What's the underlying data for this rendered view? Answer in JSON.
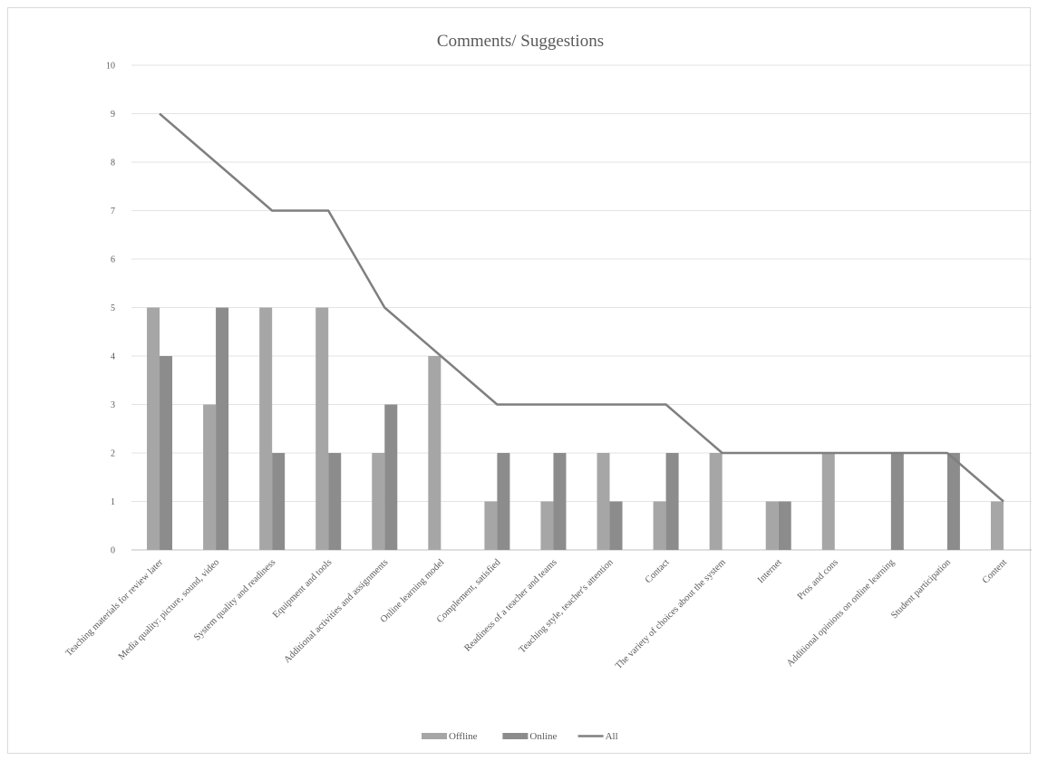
{
  "chart_data": {
    "type": "bar",
    "title": "Comments/ Suggestions",
    "xlabel": "",
    "ylabel": "",
    "ylim": [
      0,
      10
    ],
    "yticks": [
      0,
      1,
      2,
      3,
      4,
      5,
      6,
      7,
      8,
      9,
      10
    ],
    "grid": true,
    "legend_position": "bottom",
    "categories": [
      "Teaching materials for review later",
      "Media quality: picture, sound, video",
      "System quality and readiness",
      "Equipment and tools",
      "Additional activities and assignments",
      "Online learning model",
      "Complement, satisfied",
      "Readiness of a teacher and teams",
      "Teaching style, teacher's attention",
      "Contact",
      "The variety of choices about the system",
      "Internet",
      "Pros and cons",
      "Additional opinions on online learning",
      "Student participation",
      "Content"
    ],
    "series": [
      {
        "name": "Offline",
        "kind": "bar",
        "color": "#a6a6a6",
        "values": [
          5,
          3,
          5,
          5,
          2,
          4,
          1,
          1,
          2,
          1,
          2,
          1,
          2,
          0,
          0,
          1
        ]
      },
      {
        "name": "Online",
        "kind": "bar",
        "color": "#8c8c8c",
        "values": [
          4,
          5,
          2,
          2,
          3,
          0,
          2,
          2,
          1,
          2,
          0,
          1,
          0,
          2,
          2,
          0
        ]
      },
      {
        "name": "All",
        "kind": "line",
        "color": "#7f7f7f",
        "values": [
          9,
          8,
          7,
          7,
          5,
          4,
          3,
          3,
          3,
          3,
          2,
          2,
          2,
          2,
          2,
          1
        ]
      }
    ]
  }
}
